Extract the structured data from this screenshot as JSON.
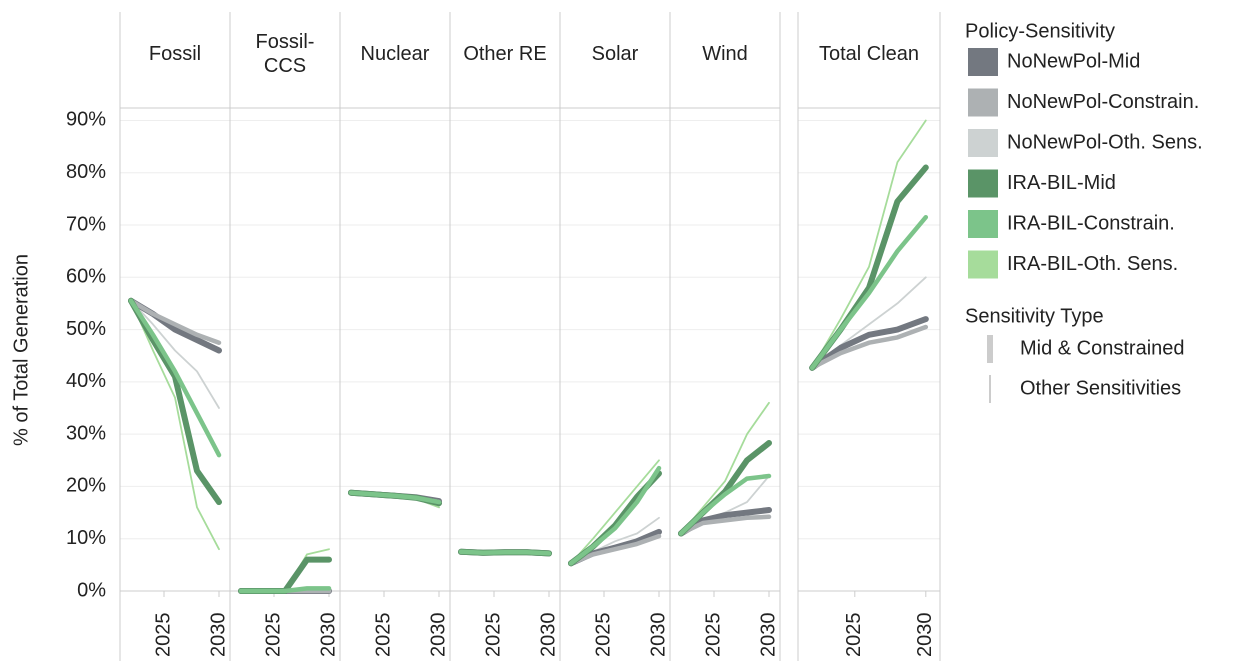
{
  "chart_data": {
    "type": "line",
    "ylabel": "% of Total Generation",
    "panels": [
      "Fossil",
      "Fossil-\nCCS",
      "Nuclear",
      "Other RE",
      "Solar",
      "Wind",
      "Total Clean"
    ],
    "x": [
      2022,
      2024,
      2026,
      2028,
      2030
    ],
    "xlim": [
      2021,
      2031
    ],
    "xticks": [
      2025,
      2030
    ],
    "ylim": [
      0,
      92
    ],
    "yticks": [
      {
        "value": 0,
        "label": "0%"
      },
      {
        "value": 10,
        "label": "10%"
      },
      {
        "value": 20,
        "label": "20%"
      },
      {
        "value": 30,
        "label": "30%"
      },
      {
        "value": 40,
        "label": "40%"
      },
      {
        "value": 50,
        "label": "50%"
      },
      {
        "value": 60,
        "label": "60%"
      },
      {
        "value": 70,
        "label": "70%"
      },
      {
        "value": 80,
        "label": "80%"
      },
      {
        "value": 90,
        "label": "90%"
      }
    ],
    "grid": true,
    "legend_title": "Policy-Sensitivity",
    "sensitivity_title": "Sensitivity Type",
    "sensitivity_types": [
      "Mid & Constrained",
      "Other Sensitivities"
    ],
    "series": [
      {
        "name": "NoNewPol-Mid",
        "color": "#737880",
        "sensitivity": 0,
        "values": [
          [
            55.5,
            53,
            50,
            48,
            46
          ],
          [
            0,
            0,
            0,
            0,
            0
          ],
          [
            18.8,
            18.5,
            18.2,
            17.9,
            17.2
          ],
          [
            7.5,
            7.3,
            7.4,
            7.4,
            7.2
          ],
          [
            5.3,
            7.2,
            8.3,
            9.5,
            11.3
          ],
          [
            11,
            13.5,
            14.5,
            15,
            15.5
          ],
          [
            42.7,
            46.5,
            49,
            50,
            52
          ]
        ]
      },
      {
        "name": "NoNewPol-Constrain.",
        "color": "#adb1b3",
        "sensitivity": 0,
        "values": [
          [
            55.5,
            53,
            51,
            49,
            47.5
          ],
          [
            0,
            0,
            0,
            0,
            0
          ],
          [
            18.8,
            18.5,
            18.2,
            17.8,
            17
          ],
          [
            7.5,
            7.3,
            7.4,
            7.4,
            7.2
          ],
          [
            5.3,
            7,
            8,
            9,
            10.5
          ],
          [
            11,
            13,
            13.5,
            14,
            14.2
          ],
          [
            42.7,
            45.5,
            47.5,
            48.5,
            50.5
          ]
        ]
      },
      {
        "name": "NoNewPol-Oth. Sens.",
        "color": "#cdd2d2",
        "sensitivity": 1,
        "values": [
          [
            55.5,
            51,
            46,
            42,
            35
          ],
          [
            0,
            0,
            0,
            0,
            0
          ],
          [
            18.8,
            18.4,
            18.1,
            17.6,
            16
          ],
          [
            7.5,
            7.3,
            7.4,
            7.4,
            7.2
          ],
          [
            5.3,
            7.5,
            9.5,
            11,
            14
          ],
          [
            11,
            13.5,
            15,
            17,
            22
          ],
          [
            42.7,
            47,
            51,
            55,
            60
          ]
        ]
      },
      {
        "name": "IRA-BIL-Mid",
        "color": "#5a9467",
        "sensitivity": 0,
        "values": [
          [
            55.5,
            48,
            41,
            23,
            17
          ],
          [
            0,
            0,
            0,
            6,
            6
          ],
          [
            18.8,
            18.5,
            18.2,
            17.8,
            16.8
          ],
          [
            7.5,
            7.3,
            7.4,
            7.4,
            7.2
          ],
          [
            5.3,
            8.5,
            12.5,
            18,
            22.5
          ],
          [
            11,
            15,
            19,
            25,
            28.3
          ],
          [
            42.7,
            50,
            58,
            74.5,
            81
          ]
        ]
      },
      {
        "name": "IRA-BIL-Constrain.",
        "color": "#7cc48a",
        "sensitivity": 0,
        "values": [
          [
            55.5,
            49,
            42,
            34,
            26
          ],
          [
            0,
            0,
            0,
            0.5,
            0.5
          ],
          [
            18.8,
            18.5,
            18.2,
            17.8,
            17
          ],
          [
            7.5,
            7.3,
            7.4,
            7.4,
            7.2
          ],
          [
            5.3,
            8.5,
            12,
            17,
            23.5
          ],
          [
            11,
            15,
            18.5,
            21.5,
            22
          ],
          [
            42.7,
            50,
            57,
            65,
            71.5
          ]
        ]
      },
      {
        "name": "IRA-BIL-Oth. Sens.",
        "color": "#a6dc9b",
        "sensitivity": 1,
        "values": [
          [
            55.5,
            46,
            37,
            16,
            8
          ],
          [
            0,
            0,
            0,
            7,
            8
          ],
          [
            18.8,
            18.4,
            18.1,
            17.6,
            16
          ],
          [
            7.5,
            7.3,
            7.4,
            7.4,
            7.2
          ],
          [
            5.3,
            10,
            15,
            20,
            25
          ],
          [
            11,
            16,
            21,
            30,
            36
          ],
          [
            42.7,
            52,
            62,
            82,
            90
          ]
        ]
      }
    ]
  }
}
